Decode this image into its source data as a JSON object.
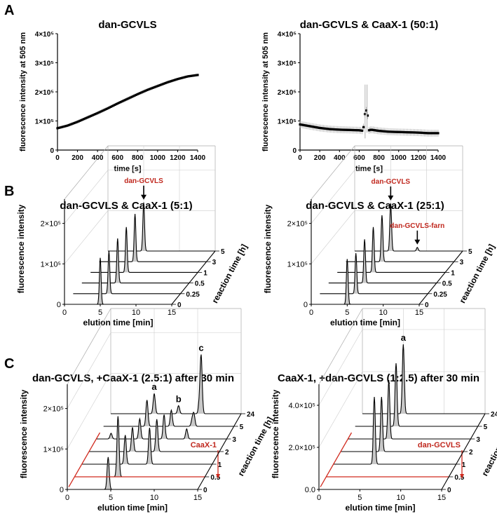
{
  "panels": {
    "A": "A",
    "B": "B",
    "C": "C"
  },
  "tick_units": {
    "e5": "×10",
    "exp": "5"
  },
  "chart_data": [
    {
      "id": "A1",
      "type": "line",
      "title": "dan-GCVLS",
      "xlabel": "time [s]",
      "ylabel": "fluorescence intensity at 505 nm",
      "xlim": [
        0,
        1400
      ],
      "ylim": [
        0,
        400000
      ],
      "xticks": [
        "0",
        "200",
        "400",
        "600",
        "800",
        "1000",
        "1200",
        "1400"
      ],
      "yticks": [
        {
          "v": 0,
          "label": "0"
        },
        {
          "v": 100000,
          "label": "1×10⁵"
        },
        {
          "v": 200000,
          "label": "2×10⁵"
        },
        {
          "v": 300000,
          "label": "3×10⁵"
        },
        {
          "v": 400000,
          "label": "4×10⁵"
        }
      ],
      "series": [
        {
          "name": "dan-GCVLS",
          "x": [
            0,
            100,
            200,
            300,
            400,
            500,
            600,
            700,
            800,
            900,
            1000,
            1100,
            1200,
            1300,
            1400
          ],
          "y": [
            75000,
            84000,
            97000,
            112000,
            127000,
            143000,
            160000,
            176000,
            192000,
            207000,
            220000,
            233000,
            244000,
            253000,
            258000
          ]
        }
      ]
    },
    {
      "id": "A2",
      "type": "line",
      "title": "dan-GCVLS & CaaX-1 (50:1)",
      "xlabel": "time [s]",
      "ylabel": "fluorescence intensity at 505 nm",
      "xlim": [
        0,
        1400
      ],
      "ylim": [
        0,
        400000
      ],
      "xticks": [
        "0",
        "200",
        "400",
        "600",
        "800",
        "1000",
        "1200",
        "1400"
      ],
      "yticks": [
        {
          "v": 0,
          "label": "0"
        },
        {
          "v": 100000,
          "label": "1×10⁵"
        },
        {
          "v": 200000,
          "label": "2×10⁵"
        },
        {
          "v": 300000,
          "label": "3×10⁵"
        },
        {
          "v": 400000,
          "label": "4×10⁵"
        }
      ],
      "series": [
        {
          "name": "dan-GCVLS & CaaX-1",
          "x": [
            0,
            100,
            200,
            300,
            400,
            500,
            600,
            640,
            660,
            680,
            700,
            720,
            800,
            900,
            1000,
            1100,
            1200,
            1300,
            1400
          ],
          "y": [
            88000,
            82000,
            76000,
            72000,
            70000,
            69000,
            68000,
            66000,
            130000,
            140000,
            68000,
            70000,
            66000,
            63000,
            62000,
            61000,
            60000,
            58000,
            58000
          ]
        }
      ]
    },
    {
      "id": "B1",
      "type": "waterfall",
      "title": "dan-GCVLS & CaaX-1 (5:1)",
      "xlabel": "elution time [min]",
      "ylabel": "fluorescence intensity",
      "zlabel": "reaction time [h]",
      "xlim": [
        0,
        15
      ],
      "xticks": [
        "0",
        "5",
        "10",
        "15"
      ],
      "yticks": [
        {
          "v": 0,
          "label": "0"
        },
        {
          "v": 100000,
          "label": "1×10⁵"
        },
        {
          "v": 200000,
          "label": "2×10⁵"
        }
      ],
      "ymax": 260000,
      "traces": [
        "0",
        "0.25",
        "0.5",
        "1",
        "3",
        "5"
      ],
      "peaks": [
        {
          "rt": 5.0,
          "heights": [
            115000,
            105000,
            110000,
            112000,
            118000,
            120000
          ]
        }
      ],
      "annotations": [
        {
          "text": "dan-GCVLS",
          "rt": 5.0,
          "trace": 5,
          "arrow": true
        }
      ],
      "highlight": null
    },
    {
      "id": "B2",
      "type": "waterfall",
      "title": "dan-GCVLS & CaaX-1 (25:1)",
      "xlabel": "elution time [min]",
      "ylabel": "fluorescence intensity",
      "zlabel": "reaction time [h]",
      "xlim": [
        0,
        15
      ],
      "xticks": [
        "0",
        "5",
        "10",
        "15"
      ],
      "yticks": [
        {
          "v": 0,
          "label": "0"
        },
        {
          "v": 100000,
          "label": "1×10⁵"
        },
        {
          "v": 200000,
          "label": "2×10⁵"
        }
      ],
      "ymax": 260000,
      "traces": [
        "0",
        "0.25",
        "0.5",
        "1",
        "3",
        "5"
      ],
      "peaks": [
        {
          "rt": 5.0,
          "heights": [
            112000,
            100000,
            108000,
            112000,
            115000,
            118000
          ]
        },
        {
          "rt": 8.7,
          "heights": [
            0,
            0,
            0,
            0,
            0,
            9000
          ]
        }
      ],
      "annotations": [
        {
          "text": "dan-GCVLS",
          "rt": 5.0,
          "trace": 5,
          "arrow": true
        },
        {
          "text": "dan-GCVLS-farn",
          "rt": 8.7,
          "trace": 5,
          "arrow": true
        }
      ],
      "highlight": null
    },
    {
      "id": "C1",
      "type": "waterfall",
      "title": "dan-GCVLS, +CaaX-1 (2.5:1) after 30 min",
      "xlabel": "elution time [min]",
      "ylabel": "fluorescence intensity",
      "zlabel": "reaction time [h]",
      "xlim": [
        0,
        15
      ],
      "xticks": [
        "0",
        "5",
        "10",
        "15"
      ],
      "yticks": [
        {
          "v": 0,
          "label": "0"
        },
        {
          "v": 100000,
          "label": "1×10⁵"
        },
        {
          "v": 200000,
          "label": "2×10⁵"
        }
      ],
      "ymax": 260000,
      "traces": [
        "0",
        "0.5",
        "1",
        "2",
        "3",
        "5",
        "24"
      ],
      "peaks": [
        {
          "rt": 1.7,
          "heights": [
            0,
            0,
            0,
            0,
            14000,
            0,
            0
          ]
        },
        {
          "rt": 4.7,
          "heights": [
            80000,
            0,
            0,
            0,
            0,
            0,
            0
          ]
        },
        {
          "rt": 5.0,
          "heights": [
            0,
            150000,
            72000,
            60000,
            50000,
            65000,
            50000
          ]
        },
        {
          "rt": 7.8,
          "heights": [
            0,
            0,
            90000,
            80000,
            60000,
            40000,
            20000
          ]
        },
        {
          "rt": 10.2,
          "heights": [
            0,
            0,
            0,
            0,
            0,
            16000,
            25000
          ]
        },
        {
          "rt": 8.7,
          "heights": [
            0,
            0,
            0,
            0,
            0,
            0,
            0
          ]
        },
        {
          "rt": 10.4,
          "heights": [
            0,
            0,
            0,
            0,
            25000,
            30000,
            140000
          ]
        }
      ],
      "peak_labels": [
        {
          "text": "a",
          "rt": 5.0,
          "trace": 6
        },
        {
          "text": "b",
          "rt": 7.8,
          "trace": 6
        },
        {
          "text": "c",
          "rt": 10.4,
          "trace": 6
        }
      ],
      "annotations": [],
      "highlight": {
        "text": "CaaX-1",
        "after_trace": 1
      }
    },
    {
      "id": "C2",
      "type": "waterfall",
      "title": "CaaX-1, +dan-GCVLS (1:2.5) after 30 min",
      "xlabel": "elution time [min]",
      "ylabel": "fluorescence intensity",
      "zlabel": "reaction time [h]",
      "xlim": [
        0,
        15
      ],
      "xticks": [
        "0",
        "5",
        "10",
        "15"
      ],
      "yticks": [
        {
          "v": 0,
          "label": "0.0"
        },
        {
          "v": 200000,
          "label": "2.0×10⁵"
        },
        {
          "v": 400000,
          "label": "4.0×10⁵"
        }
      ],
      "ymax": 500000,
      "traces": [
        "0",
        "0.5",
        "1",
        "2",
        "3",
        "5",
        "24"
      ],
      "peaks": [
        {
          "rt": 5.0,
          "heights": [
            0,
            0,
            320000,
            260000,
            280000,
            300000,
            330000
          ]
        }
      ],
      "peak_labels": [
        {
          "text": "a",
          "rt": 5.0,
          "trace": 6
        }
      ],
      "annotations": [],
      "highlight": {
        "text": "dan-GCVLS",
        "after_trace": 1
      }
    }
  ]
}
